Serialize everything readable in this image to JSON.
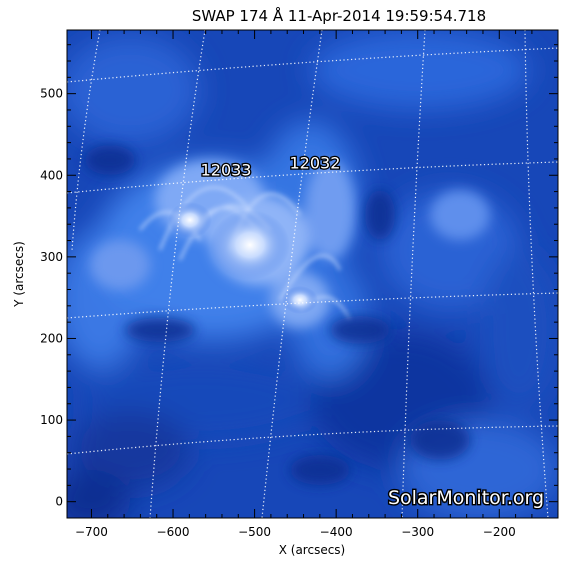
{
  "title": "SWAP 174 Å 11-Apr-2014 19:59:54.718",
  "xlabel": "X (arcsecs)",
  "ylabel": "Y (arcsecs)",
  "x_ticks": [
    -700,
    -600,
    -500,
    -400,
    -300,
    -200
  ],
  "y_ticks": [
    0,
    100,
    200,
    300,
    400,
    500
  ],
  "x_range": [
    -730,
    -128
  ],
  "y_range": [
    -20,
    578
  ],
  "regions": [
    {
      "label": "12033",
      "x": -535,
      "y": 400
    },
    {
      "label": "12032",
      "x": -426,
      "y": 408
    }
  ],
  "watermark": "SolarMonitor.org",
  "colors": {
    "sun_dark": "#0a2a8a",
    "sun_mid": "#1e5ad6",
    "sun_bright": "#dfeaff"
  }
}
